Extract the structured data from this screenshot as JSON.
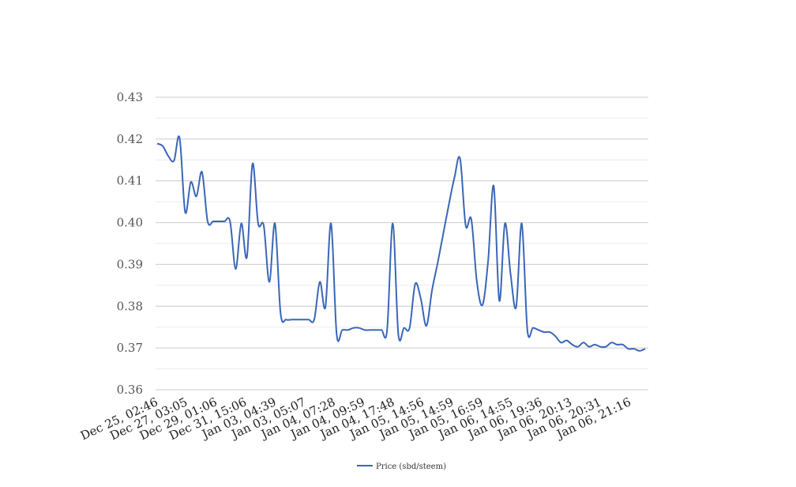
{
  "chart_data": {
    "type": "line",
    "title": "",
    "xlabel": "",
    "ylabel": "",
    "ylim": [
      0.36,
      0.43
    ],
    "yticks": [
      "0.36",
      "0.37",
      "0.38",
      "0.39",
      "0.40",
      "0.41",
      "0.42",
      "0.43"
    ],
    "xticks": [
      "Dec 25, 02:46",
      "Dec 27, 03:05",
      "Dec 29, 01:06",
      "Dec 31, 15:06",
      "Jan 03, 04:39",
      "Jan 03, 05:07",
      "Jan 04, 07:28",
      "Jan 04, 09:59",
      "Jan 04, 17:48",
      "Jan 05, 14:56",
      "Jan 05, 14:59",
      "Jan 05, 16:59",
      "Jan 06, 14:55",
      "Jan 06, 19:36",
      "Jan 06, 20:13",
      "Jan 06, 20:31",
      "Jan 06, 21:16"
    ],
    "grid": true,
    "legend_position": "bottom",
    "series": [
      {
        "name": "Price (sbd/steem)",
        "color": "#3a66b7",
        "values": [
          0.4189,
          0.4183,
          0.4159,
          0.4148,
          0.4203,
          0.4025,
          0.4097,
          0.4063,
          0.4121,
          0.4003,
          0.4003,
          0.4003,
          0.4003,
          0.4003,
          0.3889,
          0.3998,
          0.3918,
          0.4141,
          0.3998,
          0.3993,
          0.3858,
          0.3998,
          0.3783,
          0.3768,
          0.3768,
          0.3768,
          0.3768,
          0.3768,
          0.3768,
          0.3858,
          0.3798,
          0.3998,
          0.3733,
          0.3743,
          0.3743,
          0.3748,
          0.3748,
          0.3743,
          0.3743,
          0.3743,
          0.3743,
          0.3743,
          0.3998,
          0.3733,
          0.3748,
          0.3748,
          0.3853,
          0.3818,
          0.3753,
          0.3838,
          0.3903,
          0.3973,
          0.4043,
          0.4108,
          0.4153,
          0.3993,
          0.4008,
          0.3858,
          0.3803,
          0.3908,
          0.4088,
          0.3813,
          0.3998,
          0.3878,
          0.3798,
          0.3998,
          0.3743,
          0.3748,
          0.3743,
          0.3738,
          0.3738,
          0.3728,
          0.3713,
          0.3718,
          0.3708,
          0.3703,
          0.3713,
          0.3703,
          0.3708,
          0.3703,
          0.3703,
          0.3713,
          0.3708,
          0.3708,
          0.3698,
          0.3698,
          0.3693,
          0.3698
        ]
      }
    ]
  }
}
